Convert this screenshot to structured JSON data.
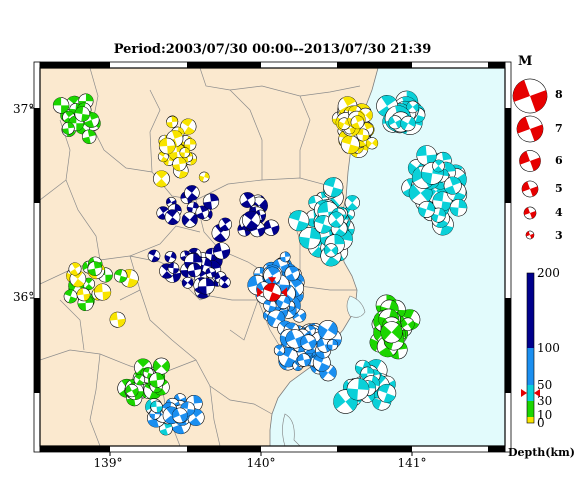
{
  "title": "Period:2003/07/30 00:00--2013/07/30 21:39",
  "lat_labels": [
    "37°",
    "36°"
  ],
  "lon_labels": [
    "139°",
    "140°",
    "141°"
  ],
  "legend": {
    "magnitude_title": "M",
    "magnitude_labels": [
      "8",
      "7",
      "6",
      "5",
      "4",
      "3"
    ],
    "depth_labels": [
      "200",
      "100",
      "50",
      "30",
      "10",
      "0"
    ],
    "depth_unit": "Depth(km)",
    "current_event_depth_km": 40
  },
  "colors": {
    "land": "#fbe9cf",
    "sea": "#e2fbfc",
    "depth_0_10": "#f8e400",
    "depth_10_30": "#1cd500",
    "depth_30_50": "#0ad0d8",
    "depth_50_100": "#1b8ff0",
    "depth_100_200": "#00008c",
    "main_event": "#e60000"
  },
  "main_event": {
    "lon": 140.07,
    "lat": 36.03,
    "mag": 4.2
  }
}
